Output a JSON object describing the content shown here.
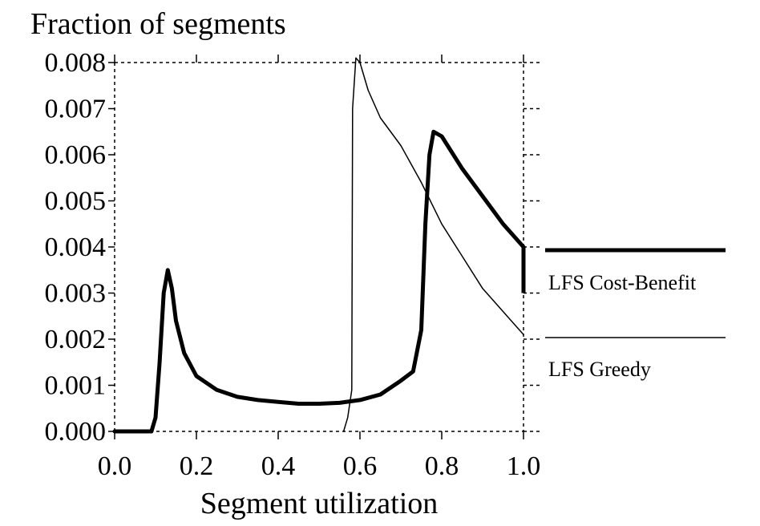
{
  "chart_data": {
    "type": "line",
    "title": "Fraction of segments",
    "xlabel": "Segment utilization",
    "ylabel": "",
    "xlim": [
      0.0,
      1.0
    ],
    "ylim": [
      0.0,
      0.008
    ],
    "x_ticks": [
      "0.0",
      "0.2",
      "0.4",
      "0.6",
      "0.8",
      "1.0"
    ],
    "y_ticks": [
      "0.000",
      "0.001",
      "0.002",
      "0.003",
      "0.004",
      "0.005",
      "0.006",
      "0.007",
      "0.008"
    ],
    "grid": false,
    "legend_placement": "right",
    "series": [
      {
        "name": "LFS Cost-Benefit",
        "style": "thick",
        "points": [
          [
            0.0,
            0.0
          ],
          [
            0.09,
            0.0
          ],
          [
            0.1,
            0.0003
          ],
          [
            0.11,
            0.0015
          ],
          [
            0.12,
            0.003
          ],
          [
            0.13,
            0.0035
          ],
          [
            0.14,
            0.0031
          ],
          [
            0.15,
            0.0024
          ],
          [
            0.17,
            0.0017
          ],
          [
            0.2,
            0.0012
          ],
          [
            0.25,
            0.0009
          ],
          [
            0.3,
            0.00075
          ],
          [
            0.35,
            0.00068
          ],
          [
            0.4,
            0.00064
          ],
          [
            0.45,
            0.0006
          ],
          [
            0.5,
            0.0006
          ],
          [
            0.55,
            0.00062
          ],
          [
            0.6,
            0.00068
          ],
          [
            0.65,
            0.0008
          ],
          [
            0.7,
            0.0011
          ],
          [
            0.73,
            0.0013
          ],
          [
            0.75,
            0.0022
          ],
          [
            0.76,
            0.0045
          ],
          [
            0.77,
            0.006
          ],
          [
            0.78,
            0.0065
          ],
          [
            0.8,
            0.0064
          ],
          [
            0.85,
            0.0057
          ],
          [
            0.9,
            0.0051
          ],
          [
            0.95,
            0.0045
          ],
          [
            1.0,
            0.004
          ]
        ]
      },
      {
        "name": "LFS Greedy",
        "style": "thin",
        "points": [
          [
            0.56,
            0.0
          ],
          [
            0.57,
            0.0003
          ],
          [
            0.58,
            0.0009
          ],
          [
            0.582,
            0.007
          ],
          [
            0.59,
            0.0081
          ],
          [
            0.6,
            0.008
          ],
          [
            0.62,
            0.0074
          ],
          [
            0.65,
            0.0068
          ],
          [
            0.7,
            0.0062
          ],
          [
            0.75,
            0.0054
          ],
          [
            0.8,
            0.0045
          ],
          [
            0.85,
            0.0038
          ],
          [
            0.9,
            0.0031
          ],
          [
            0.95,
            0.0026
          ],
          [
            1.0,
            0.0021
          ]
        ]
      }
    ]
  }
}
